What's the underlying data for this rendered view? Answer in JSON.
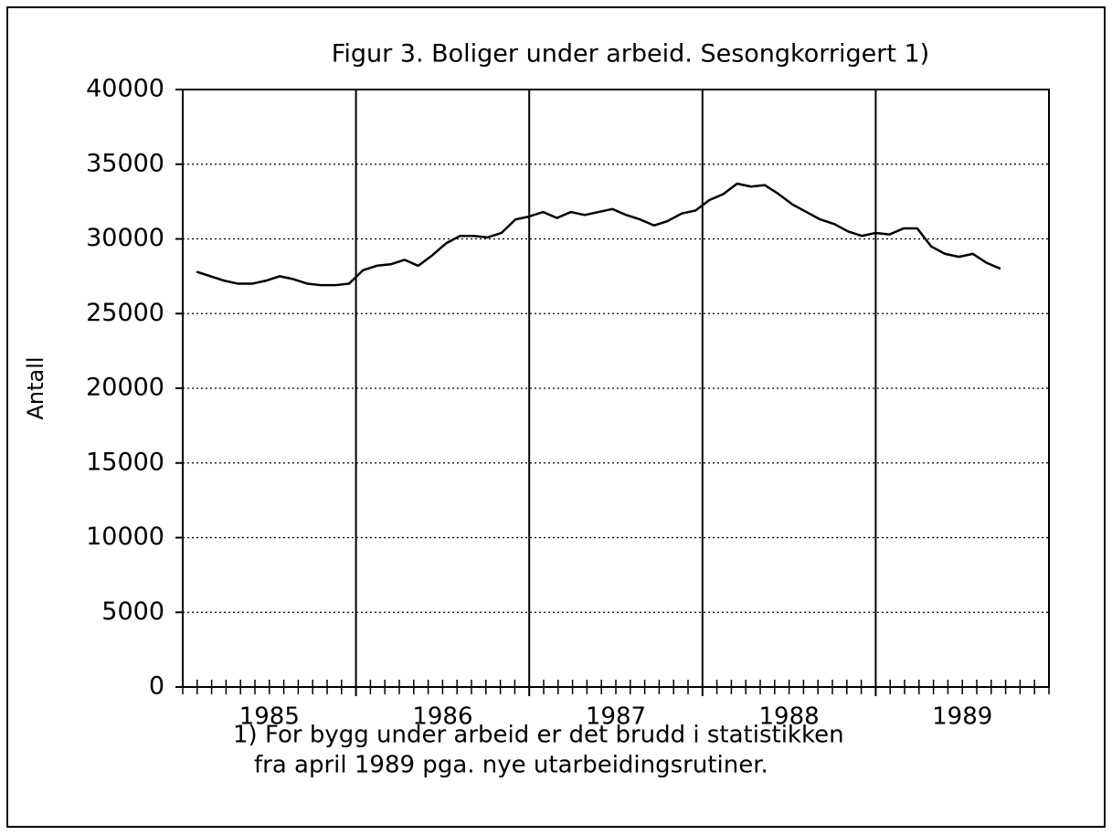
{
  "chart_data": {
    "type": "line",
    "title": "Figur 3. Boliger under arbeid. Sesongkorrigert 1)",
    "ylabel": "Antall",
    "footnote": [
      "1) For bygg under arbeid er det brudd i statistikken",
      "fra april 1989 pga. nye utarbeidingsrutiner."
    ],
    "x": [
      1985.08,
      1985.16,
      1985.24,
      1985.32,
      1985.4,
      1985.48,
      1985.56,
      1985.64,
      1985.72,
      1985.8,
      1985.88,
      1985.96,
      1986.04,
      1986.12,
      1986.2,
      1986.28,
      1986.36,
      1986.44,
      1986.52,
      1986.6,
      1986.68,
      1986.76,
      1986.84,
      1986.92,
      1987,
      1987.08,
      1987.16,
      1987.24,
      1987.32,
      1987.4,
      1987.48,
      1987.56,
      1987.64,
      1987.72,
      1987.8,
      1987.88,
      1987.96,
      1988.04,
      1988.12,
      1988.2,
      1988.28,
      1988.36,
      1988.44,
      1988.52,
      1988.6,
      1988.68,
      1988.76,
      1988.84,
      1988.92,
      1989,
      1989.08,
      1989.16,
      1989.24,
      1989.32,
      1989.4,
      1989.48,
      1989.56,
      1989.64,
      1989.72
    ],
    "series": [
      {
        "color": "#000000",
        "values": [
          27800,
          27500,
          27200,
          27000,
          27000,
          27200,
          27500,
          27300,
          27000,
          26900,
          26900,
          27000,
          27900,
          28200,
          28300,
          28600,
          28200,
          28900,
          29700,
          30200,
          30200,
          30100,
          30400,
          31300,
          31500,
          31800,
          31400,
          31800,
          31600,
          31800,
          32000,
          31600,
          31300,
          30900,
          31200,
          31700,
          31900,
          32600,
          33000,
          33700,
          33500,
          33600,
          33000,
          32300,
          31800,
          31300,
          31000,
          30500,
          30200,
          30400,
          30300,
          30700,
          30700,
          29500,
          29000,
          28800,
          29000,
          28400,
          28000
        ]
      }
    ],
    "xlim": [
      1985,
      1990
    ],
    "xticks": [
      {
        "value": 1985.5,
        "label": "1985"
      },
      {
        "value": 1986.5,
        "label": "1986"
      },
      {
        "value": 1987.5,
        "label": "1987"
      },
      {
        "value": 1988.5,
        "label": "1988"
      },
      {
        "value": 1989.5,
        "label": "1989"
      }
    ],
    "xgrid": [
      1986,
      1987,
      1988,
      1989
    ],
    "ylim": [
      0,
      40000
    ],
    "yticks": [
      0,
      5000,
      10000,
      15000,
      20000,
      25000,
      30000,
      35000,
      40000
    ],
    "grid": true
  }
}
